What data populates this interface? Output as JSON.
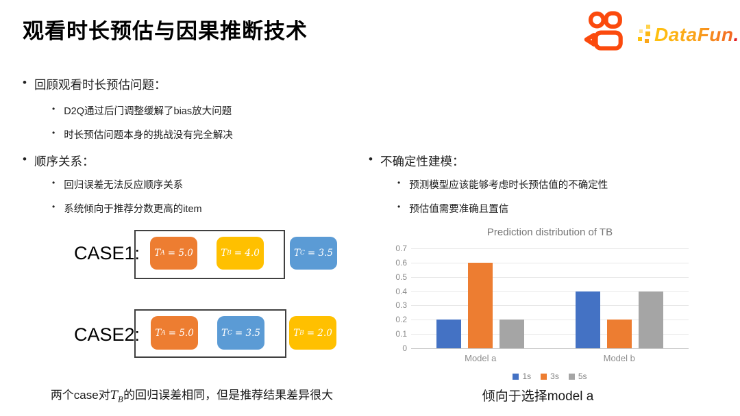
{
  "slide": {
    "title": "观看时长预估与因果推断技术"
  },
  "logos": {
    "kuaishou_icon": "kuaishou-camera-icon",
    "kuaishou_color": "#FB4A0D",
    "datafun_text": "DataFun",
    "datafun_dot": "."
  },
  "bullets": {
    "left": [
      {
        "title": "回顾观看时长预估问题：",
        "items": [
          "D2Q通过后门调整缓解了bias放大问题",
          "时长预估问题本身的挑战没有完全解决"
        ]
      },
      {
        "title": "顺序关系：",
        "items": [
          "回归误差无法反应顺序关系",
          "系统倾向于推荐分数更高的item"
        ]
      }
    ],
    "right": [
      {
        "title": "不确定性建模：",
        "items": [
          "预测模型应该能够考虑时长预估值的不确定性",
          "预估值需要准确且置信"
        ]
      }
    ]
  },
  "cases": [
    {
      "label": "CASE1:",
      "in_box": [
        {
          "var": "T",
          "sub": "A",
          "eq": "= 5.0",
          "color": "#ED7D31"
        },
        {
          "var": "T",
          "sub": "B",
          "eq": "= 4.0",
          "color": "#FFC000"
        }
      ],
      "out_box": [
        {
          "var": "T",
          "sub": "C",
          "eq": "= 3.5",
          "color": "#5B9BD5"
        }
      ]
    },
    {
      "label": "CASE2:",
      "in_box": [
        {
          "var": "T",
          "sub": "A",
          "eq": "= 5.0",
          "color": "#ED7D31"
        },
        {
          "var": "T",
          "sub": "C",
          "eq": "= 3.5",
          "color": "#5B9BD5"
        }
      ],
      "out_box": [
        {
          "var": "T",
          "sub": "B",
          "eq": "= 2.0",
          "color": "#FFC000"
        }
      ]
    }
  ],
  "captions": {
    "left": {
      "prefix": "两个case对",
      "math_var": "T",
      "math_sub": "B",
      "suffix": "的回归误差相同，但是推荐结果差异很大"
    },
    "right": "倾向于选择model a"
  },
  "chart_data": {
    "type": "bar",
    "title": "Prediction distribution of TB",
    "categories": [
      "Model a",
      "Model b"
    ],
    "series": [
      {
        "name": "1s",
        "color": "#4472C4",
        "values": [
          0.2,
          0.4
        ]
      },
      {
        "name": "3s",
        "color": "#ED7D31",
        "values": [
          0.6,
          0.2
        ]
      },
      {
        "name": "5s",
        "color": "#A5A5A5",
        "values": [
          0.2,
          0.4
        ]
      }
    ],
    "xlabel": "",
    "ylabel": "",
    "ylim": [
      0,
      0.7
    ],
    "ytick_step": 0.1,
    "grid": true,
    "legend_position": "bottom"
  }
}
